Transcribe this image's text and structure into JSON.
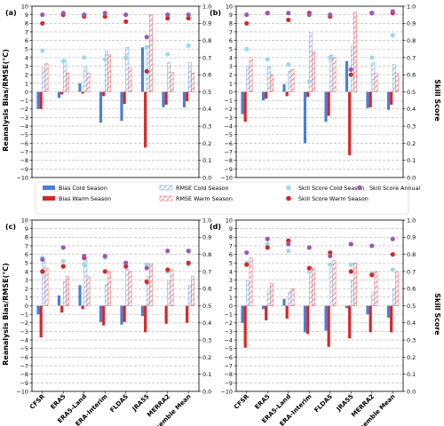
{
  "figure": {
    "y_left_label": "Reanalysis Bias/RMSE(°C)",
    "y_right_label": "Skill Score",
    "x_categories": [
      "CFSR",
      "ERA5",
      "ERA5-Land",
      "ERA-Interim",
      "FLDAS",
      "JRA55",
      "MERRA2",
      "Ensemble Mean"
    ]
  },
  "legend": [
    {
      "key": "bias_cold",
      "label": "Bias Cold Season",
      "kind": "bar",
      "color": "#4a7fd8"
    },
    {
      "key": "bias_warm",
      "label": "Bias Warm Season",
      "kind": "bar",
      "color": "#d62728"
    },
    {
      "key": "rmse_cold",
      "label": "RMSE Cold Season",
      "kind": "hatch",
      "color": "#6aa0e8"
    },
    {
      "key": "rmse_warm",
      "label": "RMSE Warm Season",
      "kind": "hatch",
      "color": "#e06060"
    },
    {
      "key": "skill_cold",
      "label": "Skill Score Cold Season",
      "kind": "dot",
      "color": "#9fd8ec"
    },
    {
      "key": "skill_warm",
      "label": "Skill Score Warm Season",
      "kind": "dot",
      "color": "#d62728"
    },
    {
      "key": "skill_annual",
      "label": "Skill Score Annual",
      "kind": "dot",
      "color": "#9b59b6"
    }
  ],
  "chart_data": [
    {
      "panel": "(a)",
      "type": "bar",
      "categories": [
        "CFSR",
        "ERA5",
        "ERA5-Land",
        "ERA-Interim",
        "FLDAS",
        "JRA55",
        "MERRA2",
        "Ensemble Mean"
      ],
      "ylim": [
        -10,
        10
      ],
      "ylim_right": [
        0,
        1
      ],
      "yticks": [
        -10,
        -9,
        -8,
        -7,
        -6,
        -5,
        -4,
        -3,
        -2,
        -1,
        0,
        1,
        2,
        3,
        4,
        5,
        6,
        7,
        8,
        9,
        10
      ],
      "yticks_right": [
        "0.0",
        "0.1",
        "0.2",
        "0.3",
        "0.4",
        "0.5",
        "0.6",
        "0.7",
        "0.8",
        "0.9",
        "1.0"
      ],
      "series": [
        {
          "name": "Bias Cold Season",
          "values": [
            -2.0,
            -0.7,
            1.0,
            -3.6,
            -3.4,
            5.2,
            -1.8,
            -1.8
          ]
        },
        {
          "name": "Bias Warm Season",
          "values": [
            -2.0,
            -0.3,
            -0.2,
            -0.5,
            -1.4,
            -6.5,
            -1.5,
            -1.1
          ]
        },
        {
          "name": "RMSE Cold Season",
          "values": [
            2.8,
            3.7,
            2.9,
            4.8,
            5.2,
            5.4,
            3.4,
            3.4
          ]
        },
        {
          "name": "RMSE Warm Season",
          "values": [
            3.3,
            2.2,
            2.2,
            4.3,
            2.8,
            9.0,
            2.3,
            2.2
          ]
        },
        {
          "name": "Skill Score Cold Season",
          "values": [
            0.74,
            0.68,
            0.7,
            0.69,
            0.7,
            0.76,
            0.72,
            0.77
          ]
        },
        {
          "name": "Skill Score Warm Season",
          "values": [
            0.9,
            0.95,
            0.94,
            0.94,
            0.91,
            0.62,
            0.93,
            0.93
          ]
        },
        {
          "name": "Skill Score Annual",
          "values": [
            0.95,
            0.96,
            0.95,
            0.96,
            0.95,
            0.82,
            0.95,
            0.95
          ]
        }
      ]
    },
    {
      "panel": "(b)",
      "type": "bar",
      "categories": [
        "CFSR",
        "ERA5",
        "ERA5-Land",
        "ERA-Interim",
        "FLDAS",
        "JRA55",
        "MERRA2",
        "Ensemble Mean"
      ],
      "ylim": [
        -10,
        10
      ],
      "ylim_right": [
        0,
        1
      ],
      "yticks": [
        -10,
        -9,
        -8,
        -7,
        -6,
        -5,
        -4,
        -3,
        -2,
        -1,
        0,
        1,
        2,
        3,
        4,
        5,
        6,
        7,
        8,
        9,
        10
      ],
      "yticks_right": [
        "0.0",
        "0.1",
        "0.2",
        "0.3",
        "0.4",
        "0.5",
        "0.6",
        "0.7",
        "0.8",
        "0.9",
        "1.0"
      ],
      "series": [
        {
          "name": "Bias Cold Season",
          "values": [
            -2.6,
            -1.0,
            0.9,
            -6.0,
            -3.5,
            3.6,
            -1.9,
            -2.1
          ]
        },
        {
          "name": "Bias Warm Season",
          "values": [
            -3.5,
            -0.8,
            -0.5,
            -0.6,
            -2.8,
            -7.4,
            -1.8,
            -1.5
          ]
        },
        {
          "name": "RMSE Cold Season",
          "values": [
            3.0,
            3.0,
            2.4,
            6.9,
            4.3,
            5.3,
            3.4,
            3.2
          ]
        },
        {
          "name": "RMSE Warm Season",
          "values": [
            4.0,
            2.0,
            2.6,
            4.7,
            4.0,
            9.3,
            2.2,
            2.2
          ]
        },
        {
          "name": "Skill Score Cold Season",
          "values": [
            0.75,
            0.69,
            0.66,
            0.56,
            0.7,
            0.63,
            0.7,
            0.83
          ]
        },
        {
          "name": "Skill Score Warm Season",
          "values": [
            0.9,
            0.96,
            0.92,
            0.96,
            0.94,
            0.6,
            0.96,
            0.96
          ]
        },
        {
          "name": "Skill Score Annual",
          "values": [
            0.95,
            0.96,
            0.96,
            0.95,
            0.95,
            0.63,
            0.96,
            0.97
          ]
        }
      ]
    },
    {
      "panel": "(c)",
      "type": "bar",
      "categories": [
        "CFSR",
        "ERA5",
        "ERA5-Land",
        "ERA-Interim",
        "FLDAS",
        "JRA55",
        "MERRA2",
        "Ensemble Mean"
      ],
      "ylim": [
        -10,
        10
      ],
      "ylim_right": [
        0,
        1
      ],
      "yticks": [
        -10,
        -9,
        -8,
        -7,
        -6,
        -5,
        -4,
        -3,
        -2,
        -1,
        0,
        1,
        2,
        3,
        4,
        5,
        6,
        7,
        8,
        9,
        10
      ],
      "yticks_right": [
        "0.0",
        "0.1",
        "0.2",
        "0.3",
        "0.4",
        "0.5",
        "0.6",
        "0.7",
        "0.8",
        "0.9",
        "1.0"
      ],
      "series": [
        {
          "name": "Bias Cold Season",
          "values": [
            -1.0,
            1.2,
            2.4,
            -1.9,
            -2.2,
            -1.2,
            0.0,
            0.0
          ]
        },
        {
          "name": "Bias Warm Season",
          "values": [
            -3.7,
            -0.8,
            -0.4,
            -2.3,
            -1.9,
            -3.1,
            -2.1,
            -2.0
          ]
        },
        {
          "name": "RMSE Cold Season",
          "values": [
            5.3,
            2.8,
            5.5,
            2.5,
            4.3,
            3.4,
            2.9,
            2.4
          ]
        },
        {
          "name": "RMSE Warm Season",
          "values": [
            4.4,
            3.4,
            3.4,
            4.0,
            4.0,
            4.9,
            4.2,
            3.4
          ]
        },
        {
          "name": "Skill Score Cold Season",
          "values": [
            0.78,
            0.76,
            0.74,
            0.78,
            0.74,
            0.74,
            0.7,
            0.74
          ]
        },
        {
          "name": "Skill Score Warm Season",
          "values": [
            0.7,
            0.73,
            0.78,
            0.7,
            0.73,
            0.64,
            0.71,
            0.75
          ]
        },
        {
          "name": "Skill Score Annual",
          "values": [
            0.77,
            0.84,
            0.79,
            0.79,
            0.75,
            0.72,
            0.82,
            0.82
          ]
        }
      ]
    },
    {
      "panel": "(d)",
      "type": "bar",
      "categories": [
        "CFSR",
        "ERA5",
        "ERA5-Land",
        "ERA-Interim",
        "FLDAS",
        "JRA55",
        "MERRA2",
        "Ensemble Mean"
      ],
      "ylim": [
        -10,
        10
      ],
      "ylim_right": [
        0,
        1
      ],
      "yticks": [
        -10,
        -9,
        -8,
        -7,
        -6,
        -5,
        -4,
        -3,
        -2,
        -1,
        0,
        1,
        2,
        3,
        4,
        5,
        6,
        7,
        8,
        9,
        10
      ],
      "yticks_right": [
        "0.0",
        "0.1",
        "0.2",
        "0.3",
        "0.4",
        "0.5",
        "0.6",
        "0.7",
        "0.8",
        "0.9",
        "1.0"
      ],
      "series": [
        {
          "name": "Bias Cold Season",
          "values": [
            -2.0,
            -0.4,
            0.8,
            -3.1,
            -2.9,
            -0.3,
            -1.0,
            -1.4
          ]
        },
        {
          "name": "Bias Warm Season",
          "values": [
            -4.9,
            -1.7,
            -1.5,
            -3.3,
            -4.8,
            -3.8,
            -3.1,
            -3.1
          ]
        },
        {
          "name": "RMSE Cold Season",
          "values": [
            2.9,
            1.8,
            1.6,
            4.6,
            4.4,
            3.0,
            1.6,
            2.0
          ]
        },
        {
          "name": "RMSE Warm Season",
          "values": [
            5.6,
            2.6,
            2.0,
            4.3,
            5.3,
            5.0,
            4.0,
            4.0
          ]
        },
        {
          "name": "Skill Score Cold Season",
          "values": [
            0.75,
            0.86,
            0.82,
            0.7,
            0.74,
            0.74,
            0.69,
            0.71
          ]
        },
        {
          "name": "Skill Score Warm Season",
          "values": [
            0.74,
            0.84,
            0.88,
            0.72,
            0.81,
            0.7,
            0.68,
            0.8
          ]
        },
        {
          "name": "Skill Score Annual",
          "values": [
            0.81,
            0.89,
            0.86,
            0.84,
            0.79,
            0.86,
            0.85,
            0.89
          ]
        }
      ]
    }
  ]
}
